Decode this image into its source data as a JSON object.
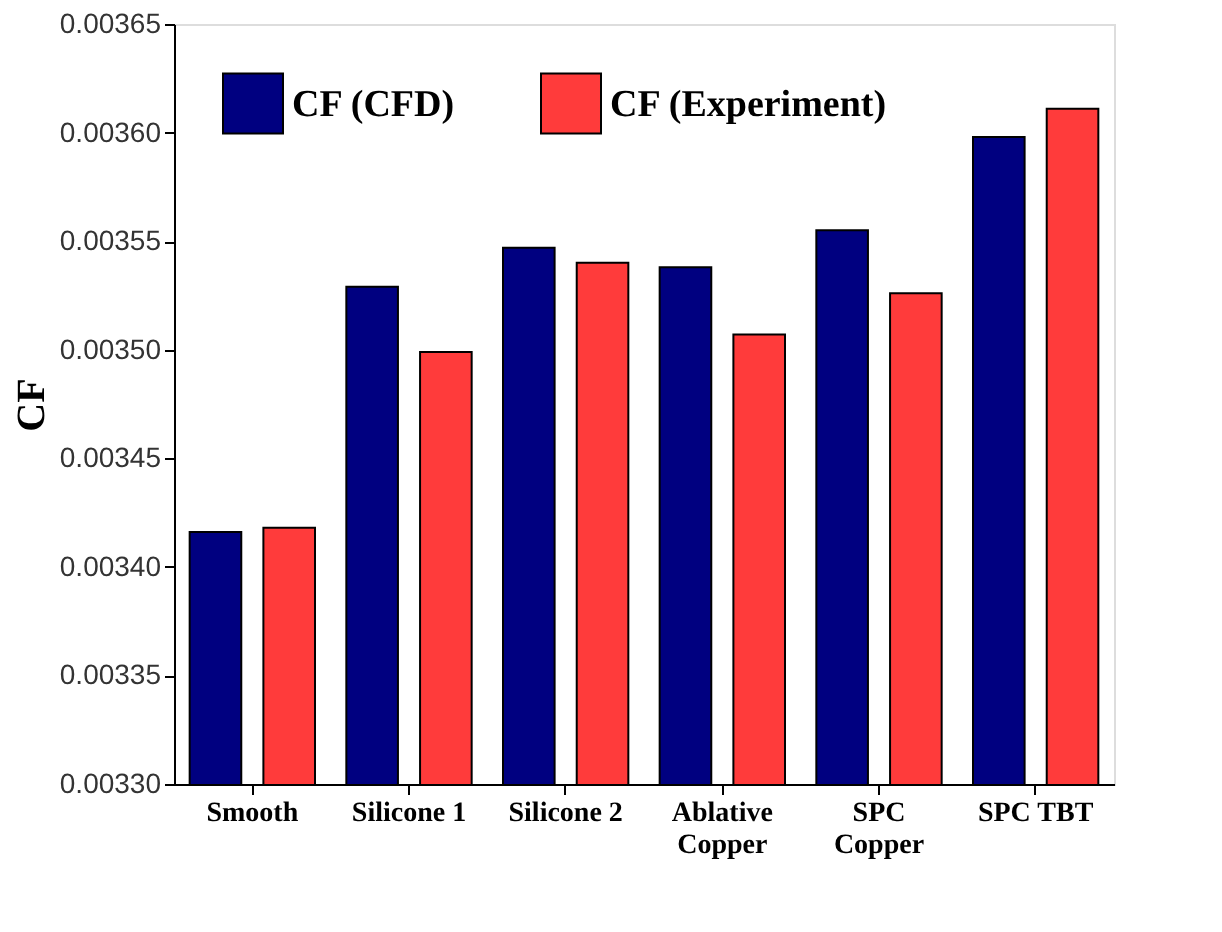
{
  "chart_data": {
    "type": "bar",
    "ylabel": "CF",
    "categories": [
      "Smooth",
      "Silicone 1",
      "Silicone 2",
      "Ablative\nCopper",
      "SPC\nCopper",
      "SPC TBT"
    ],
    "series": [
      {
        "name": "CF (CFD)",
        "color": "#000080",
        "values": [
          0.003416,
          0.003529,
          0.003547,
          0.003538,
          0.003555,
          0.003598
        ]
      },
      {
        "name": "CF (Experiment)",
        "color": "#ff3b3b",
        "values": [
          0.003418,
          0.003499,
          0.00354,
          0.003507,
          0.003526,
          0.003611
        ]
      }
    ],
    "ylim": [
      0.0033,
      0.00365
    ],
    "yticks": [
      {
        "value": 0.0033,
        "label": "0.00330"
      },
      {
        "value": 0.00335,
        "label": "0.00335"
      },
      {
        "value": 0.0034,
        "label": "0.00340"
      },
      {
        "value": 0.00345,
        "label": "0.00345"
      },
      {
        "value": 0.0035,
        "label": "0.00350"
      },
      {
        "value": 0.00355,
        "label": "0.00355"
      },
      {
        "value": 0.0036,
        "label": "0.00360"
      },
      {
        "value": 0.00365,
        "label": "0.00365"
      }
    ],
    "grid": false,
    "legend": "top left"
  }
}
